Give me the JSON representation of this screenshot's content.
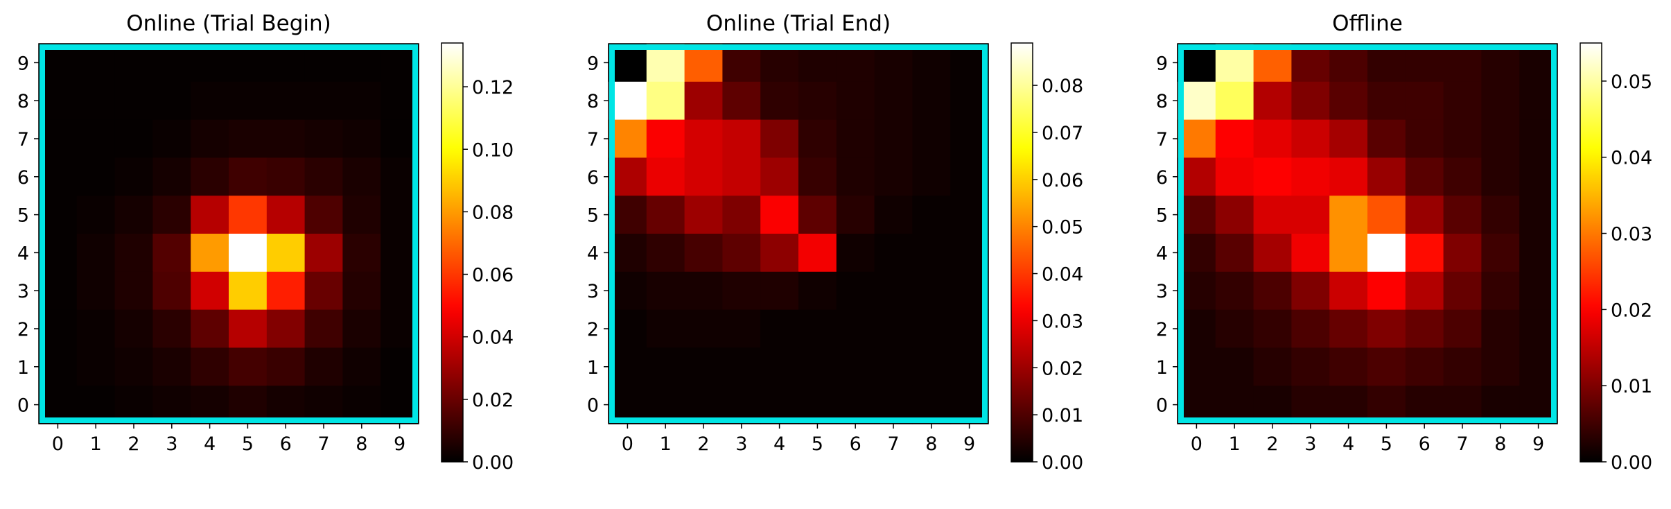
{
  "chart_data": [
    {
      "type": "heatmap",
      "title": "Online (Trial Begin)",
      "x_ticks": [
        "0",
        "1",
        "2",
        "3",
        "4",
        "5",
        "6",
        "7",
        "8",
        "9"
      ],
      "y_ticks": [
        "0",
        "1",
        "2",
        "3",
        "4",
        "5",
        "6",
        "7",
        "8",
        "9"
      ],
      "colormap": "hot",
      "colorbar": {
        "min": 0.0,
        "max": 0.134,
        "ticks": [
          "0.00",
          "0.02",
          "0.04",
          "0.06",
          "0.08",
          "0.10",
          "0.12"
        ],
        "tick_values": [
          0.0,
          0.02,
          0.04,
          0.06,
          0.08,
          0.1,
          0.12
        ]
      },
      "border_color": "#00e5e5",
      "rows_top_to_bottom": [
        [
          0.001,
          0.001,
          0.001,
          0.001,
          0.001,
          0.001,
          0.001,
          0.001,
          0.001,
          0.001
        ],
        [
          0.001,
          0.001,
          0.001,
          0.001,
          0.002,
          0.002,
          0.002,
          0.002,
          0.002,
          0.001
        ],
        [
          0.001,
          0.001,
          0.001,
          0.002,
          0.004,
          0.005,
          0.005,
          0.004,
          0.003,
          0.001
        ],
        [
          0.001,
          0.001,
          0.002,
          0.004,
          0.008,
          0.012,
          0.011,
          0.008,
          0.005,
          0.002
        ],
        [
          0.001,
          0.002,
          0.004,
          0.008,
          0.035,
          0.06,
          0.035,
          0.015,
          0.006,
          0.002
        ],
        [
          0.001,
          0.003,
          0.006,
          0.016,
          0.08,
          0.134,
          0.09,
          0.03,
          0.008,
          0.002
        ],
        [
          0.001,
          0.003,
          0.006,
          0.015,
          0.04,
          0.09,
          0.055,
          0.02,
          0.007,
          0.002
        ],
        [
          0.001,
          0.002,
          0.004,
          0.008,
          0.018,
          0.035,
          0.025,
          0.012,
          0.005,
          0.002
        ],
        [
          0.001,
          0.002,
          0.003,
          0.005,
          0.009,
          0.013,
          0.011,
          0.006,
          0.003,
          0.001
        ],
        [
          0.001,
          0.001,
          0.002,
          0.003,
          0.004,
          0.006,
          0.004,
          0.003,
          0.002,
          0.001
        ]
      ]
    },
    {
      "type": "heatmap",
      "title": "Online (Trial End)",
      "x_ticks": [
        "0",
        "1",
        "2",
        "3",
        "4",
        "5",
        "6",
        "7",
        "8",
        "9"
      ],
      "y_ticks": [
        "0",
        "1",
        "2",
        "3",
        "4",
        "5",
        "6",
        "7",
        "8",
        "9"
      ],
      "colormap": "hot",
      "colorbar": {
        "min": 0.0,
        "max": 0.089,
        "ticks": [
          "0.00",
          "0.01",
          "0.02",
          "0.03",
          "0.04",
          "0.05",
          "0.06",
          "0.07",
          "0.08"
        ],
        "tick_values": [
          0.0,
          0.01,
          0.02,
          0.03,
          0.04,
          0.05,
          0.06,
          0.07,
          0.08
        ]
      },
      "border_color": "#00e5e5",
      "rows_top_to_bottom": [
        [
          0.0,
          0.082,
          0.045,
          0.008,
          0.005,
          0.004,
          0.004,
          0.003,
          0.002,
          0.001
        ],
        [
          0.089,
          0.078,
          0.02,
          0.012,
          0.006,
          0.005,
          0.004,
          0.003,
          0.002,
          0.001
        ],
        [
          0.05,
          0.032,
          0.027,
          0.025,
          0.016,
          0.006,
          0.004,
          0.003,
          0.002,
          0.001
        ],
        [
          0.022,
          0.03,
          0.027,
          0.025,
          0.02,
          0.007,
          0.004,
          0.003,
          0.002,
          0.001
        ],
        [
          0.008,
          0.013,
          0.02,
          0.016,
          0.032,
          0.012,
          0.005,
          0.002,
          0.001,
          0.001
        ],
        [
          0.004,
          0.006,
          0.009,
          0.012,
          0.018,
          0.031,
          0.002,
          0.001,
          0.001,
          0.001
        ],
        [
          0.002,
          0.003,
          0.003,
          0.004,
          0.004,
          0.002,
          0.001,
          0.001,
          0.001,
          0.001
        ],
        [
          0.001,
          0.002,
          0.002,
          0.002,
          0.001,
          0.001,
          0.001,
          0.001,
          0.001,
          0.001
        ],
        [
          0.001,
          0.001,
          0.001,
          0.001,
          0.001,
          0.001,
          0.001,
          0.001,
          0.001,
          0.001
        ],
        [
          0.001,
          0.001,
          0.001,
          0.001,
          0.001,
          0.001,
          0.001,
          0.001,
          0.001,
          0.001
        ]
      ]
    },
    {
      "type": "heatmap",
      "title": "Offline",
      "x_ticks": [
        "0",
        "1",
        "2",
        "3",
        "4",
        "5",
        "6",
        "7",
        "8",
        "9"
      ],
      "y_ticks": [
        "0",
        "1",
        "2",
        "3",
        "4",
        "5",
        "6",
        "7",
        "8",
        "9"
      ],
      "colormap": "hot",
      "colorbar": {
        "min": 0.0,
        "max": 0.055,
        "ticks": [
          "0.00",
          "0.01",
          "0.02",
          "0.03",
          "0.04",
          "0.05"
        ],
        "tick_values": [
          0.0,
          0.01,
          0.02,
          0.03,
          0.04,
          0.05
        ]
      },
      "border_color": "#00e5e5",
      "rows_top_to_bottom": [
        [
          0.0,
          0.05,
          0.028,
          0.008,
          0.006,
          0.004,
          0.004,
          0.004,
          0.003,
          0.002
        ],
        [
          0.052,
          0.046,
          0.014,
          0.01,
          0.007,
          0.005,
          0.005,
          0.004,
          0.003,
          0.002
        ],
        [
          0.03,
          0.02,
          0.018,
          0.016,
          0.013,
          0.007,
          0.005,
          0.004,
          0.003,
          0.002
        ],
        [
          0.014,
          0.019,
          0.02,
          0.019,
          0.018,
          0.012,
          0.007,
          0.005,
          0.003,
          0.002
        ],
        [
          0.007,
          0.011,
          0.017,
          0.017,
          0.032,
          0.027,
          0.012,
          0.007,
          0.004,
          0.002
        ],
        [
          0.004,
          0.007,
          0.013,
          0.019,
          0.032,
          0.055,
          0.021,
          0.01,
          0.005,
          0.002
        ],
        [
          0.003,
          0.004,
          0.006,
          0.01,
          0.016,
          0.02,
          0.014,
          0.008,
          0.004,
          0.002
        ],
        [
          0.002,
          0.003,
          0.004,
          0.006,
          0.008,
          0.01,
          0.008,
          0.006,
          0.003,
          0.002
        ],
        [
          0.002,
          0.002,
          0.003,
          0.004,
          0.005,
          0.006,
          0.005,
          0.004,
          0.003,
          0.002
        ],
        [
          0.002,
          0.002,
          0.002,
          0.003,
          0.003,
          0.004,
          0.003,
          0.003,
          0.002,
          0.002
        ]
      ]
    }
  ]
}
